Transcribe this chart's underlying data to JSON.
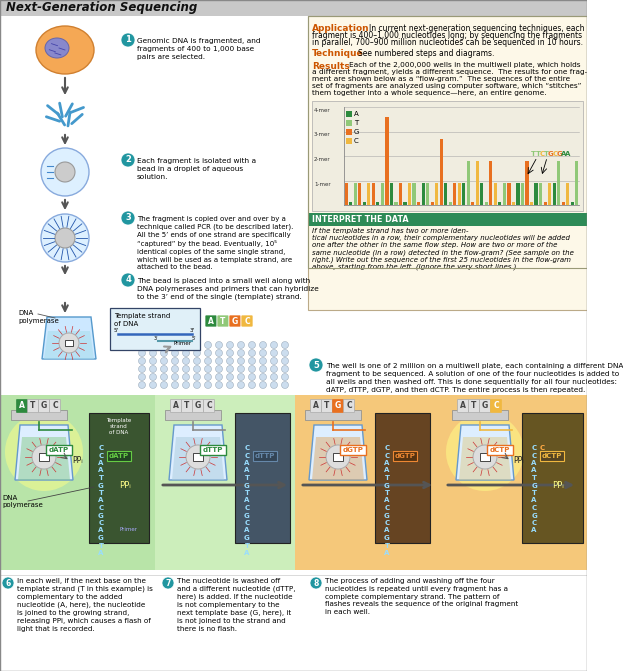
{
  "title": "Next-Generation Sequencing",
  "title_bg": "#c8c8c8",
  "background": "#ffffff",
  "app_box_bg": "#fdf8e8",
  "step_circle_color": "#2196a0",
  "app_label_color": "#cc5500",
  "technique_label_color": "#cc5500",
  "results_label_color": "#cc5500",
  "flowgram_bg": "#f0ede0",
  "A_color": "#2d8a3e",
  "T_color": "#90c878",
  "G_color": "#e87020",
  "C_color": "#f0b840",
  "interpret_green": "#2e8b57",
  "step1_text": "Genomic DNA is fragmented, and\nfragments of 400 to 1,000 base\npairs are selected.",
  "step2_text": "Each fragment is isolated with a\nbead in a droplet of aqueous\nsolution.",
  "step3_text": "The fragment is copied over and over by a\ntechnique called PCR (to be described later).\nAll the 5’ ends of one strand are specifically\n“captured” by the bead. Eventually, 10⁵\nidentical copies of the same single strand,\nwhich will be used as a template strand, are\nattached to the bead.",
  "step4_text": "The bead is placed into a small well along with\nDNA polymerases and primers that can hybridize\nto the 3’ end of the single (template) strand.",
  "step5_text": "The well is one of 2 million on a multiwell plate, each containing a different DNA\nfragment to be sequenced. A solution of one of the four nucleotides is added to\nall wells and then washed off. This is done sequentially for all four nucleotides:\ndATP, dTTP, dGTP, and then dCTP. The entire process is then repeated.",
  "step6_text": "In each well, if the next base on the\ntemplate strand (T in this example) is\ncomplementary to the added\nnucleotide (A, here), the nucleotide\nis joined to the growing strand,\nreleasing PPi, which causes a flash of\nlight that is recorded.",
  "step7_text": "The nucleotide is washed off\nand a different nucleotide (dTTP,\nhere) is added. If the nucleotide\nis not complementary to the\nnext template base (G, here), it\nis not joined to the strand and\nthere is no flash.",
  "step8_text": "The process of adding and washing off the four\nnucleotides is repeated until every fragment has a\ncomplete complementary strand. The pattern of\nflashes reveals the sequence of the original fragment\nin each well.",
  "app_text": "In current next-generation sequencing techniques, each\nfragment is 400–1,000 nucleotides long; by sequencing the fragments\nin parallel, 700–900 million nucleotides can be sequenced in 10 hours.",
  "technique_text": "See numbered steps and diagrams.",
  "results_text": "Each of the 2,000,000 wells in the multiwell plate, which holds\na different fragment, yields a different sequence. The results for one frag-\nment are shown below as a “flow-gram.” The sequences of the entire\nset of fragments are analyzed using computer software, which “stitches”\nthem together into a whole sequence—here, an entire genome.",
  "interpret_label": "INTERPRET THE DATA",
  "interpret_body": "If the template strand has two or more iden-\ntical nucleotides in a row, their complementary nucleotides will be added\none after the other in the same flow step. How are two or more of the\nsame nucleotide (in a row) detected in the flow-gram? (See sample on the\nright.) Write out the sequence of the first 25 nucleotides in the flow-gram\nabove, starting from the left. (Ignore the very short lines.)"
}
